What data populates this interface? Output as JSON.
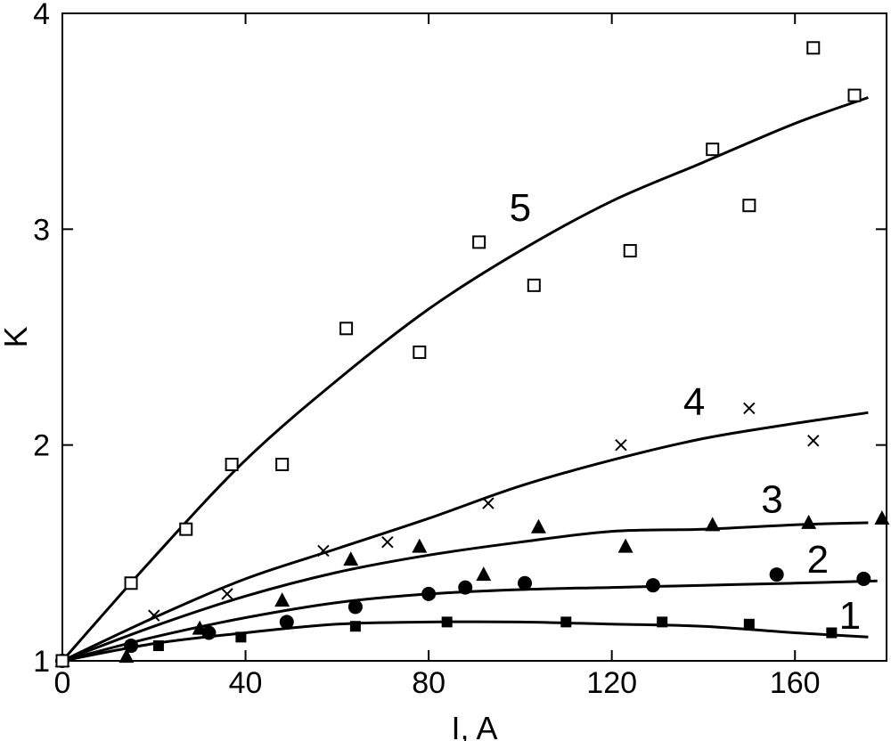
{
  "chart_data": {
    "type": "scatter",
    "xlabel": "I, A",
    "ylabel": "K",
    "xlim": [
      0,
      180
    ],
    "ylim": [
      1,
      4
    ],
    "xticks": [
      "0",
      "40",
      "80",
      "120",
      "160"
    ],
    "yticks": [
      "1",
      "2",
      "3",
      "4"
    ],
    "grid": false,
    "series": [
      {
        "name": "1",
        "marker": "filled-square",
        "points": [
          [
            0,
            1.0
          ],
          [
            15,
            1.07
          ],
          [
            21,
            1.07
          ],
          [
            39,
            1.11
          ],
          [
            64,
            1.16
          ],
          [
            84,
            1.18
          ],
          [
            110,
            1.18
          ],
          [
            131,
            1.18
          ],
          [
            150,
            1.17
          ],
          [
            168,
            1.13
          ]
        ],
        "fit": [
          [
            0,
            1.0
          ],
          [
            20,
            1.08
          ],
          [
            40,
            1.13
          ],
          [
            60,
            1.17
          ],
          [
            80,
            1.18
          ],
          [
            100,
            1.18
          ],
          [
            120,
            1.17
          ],
          [
            140,
            1.16
          ],
          [
            160,
            1.13
          ],
          [
            176,
            1.11
          ]
        ]
      },
      {
        "name": "2",
        "marker": "filled-circle",
        "points": [
          [
            0,
            1.0
          ],
          [
            15,
            1.07
          ],
          [
            32,
            1.13
          ],
          [
            49,
            1.18
          ],
          [
            64,
            1.25
          ],
          [
            80,
            1.31
          ],
          [
            88,
            1.34
          ],
          [
            101,
            1.36
          ],
          [
            129,
            1.35
          ],
          [
            156,
            1.4
          ],
          [
            175,
            1.38
          ]
        ],
        "fit": [
          [
            0,
            1.0
          ],
          [
            20,
            1.11
          ],
          [
            40,
            1.2
          ],
          [
            60,
            1.27
          ],
          [
            80,
            1.31
          ],
          [
            100,
            1.33
          ],
          [
            120,
            1.34
          ],
          [
            140,
            1.35
          ],
          [
            160,
            1.36
          ],
          [
            178,
            1.37
          ]
        ]
      },
      {
        "name": "3",
        "marker": "filled-triangle",
        "points": [
          [
            0,
            1.0
          ],
          [
            14,
            1.02
          ],
          [
            30,
            1.15
          ],
          [
            48,
            1.28
          ],
          [
            63,
            1.47
          ],
          [
            78,
            1.53
          ],
          [
            92,
            1.4
          ],
          [
            104,
            1.62
          ],
          [
            123,
            1.53
          ],
          [
            142,
            1.63
          ],
          [
            163,
            1.64
          ],
          [
            179,
            1.66
          ]
        ],
        "fit": [
          [
            0,
            1.0
          ],
          [
            20,
            1.16
          ],
          [
            40,
            1.3
          ],
          [
            60,
            1.41
          ],
          [
            80,
            1.49
          ],
          [
            100,
            1.55
          ],
          [
            120,
            1.6
          ],
          [
            140,
            1.61
          ],
          [
            160,
            1.63
          ],
          [
            176,
            1.64
          ]
        ]
      },
      {
        "name": "4",
        "marker": "cross",
        "points": [
          [
            0,
            1.0
          ],
          [
            20,
            1.21
          ],
          [
            36,
            1.31
          ],
          [
            57,
            1.51
          ],
          [
            71,
            1.55
          ],
          [
            93,
            1.73
          ],
          [
            122,
            2.0
          ],
          [
            150,
            2.17
          ],
          [
            164,
            2.02
          ]
        ],
        "fit": [
          [
            0,
            1.0
          ],
          [
            20,
            1.2
          ],
          [
            40,
            1.38
          ],
          [
            60,
            1.52
          ],
          [
            80,
            1.66
          ],
          [
            100,
            1.81
          ],
          [
            120,
            1.93
          ],
          [
            140,
            2.03
          ],
          [
            160,
            2.1
          ],
          [
            176,
            2.15
          ]
        ]
      },
      {
        "name": "5",
        "marker": "open-square",
        "points": [
          [
            0,
            1.0
          ],
          [
            15,
            1.36
          ],
          [
            27,
            1.61
          ],
          [
            37,
            1.91
          ],
          [
            48,
            1.91
          ],
          [
            62,
            2.54
          ],
          [
            78,
            2.43
          ],
          [
            91,
            2.94
          ],
          [
            103,
            2.74
          ],
          [
            124,
            2.9
          ],
          [
            142,
            3.37
          ],
          [
            150,
            3.11
          ],
          [
            164,
            3.84
          ],
          [
            173,
            3.62
          ]
        ],
        "fit": [
          [
            0,
            1.0
          ],
          [
            20,
            1.48
          ],
          [
            40,
            1.93
          ],
          [
            60,
            2.3
          ],
          [
            80,
            2.63
          ],
          [
            100,
            2.9
          ],
          [
            120,
            3.13
          ],
          [
            140,
            3.31
          ],
          [
            160,
            3.49
          ],
          [
            176,
            3.61
          ]
        ]
      }
    ],
    "curve_labels": [
      {
        "text": "1",
        "x": 172,
        "y": 1.21
      },
      {
        "text": "2",
        "x": 165,
        "y": 1.47
      },
      {
        "text": "3",
        "x": 155,
        "y": 1.75
      },
      {
        "text": "4",
        "x": 138,
        "y": 2.2
      },
      {
        "text": "5",
        "x": 100,
        "y": 3.1
      }
    ]
  }
}
